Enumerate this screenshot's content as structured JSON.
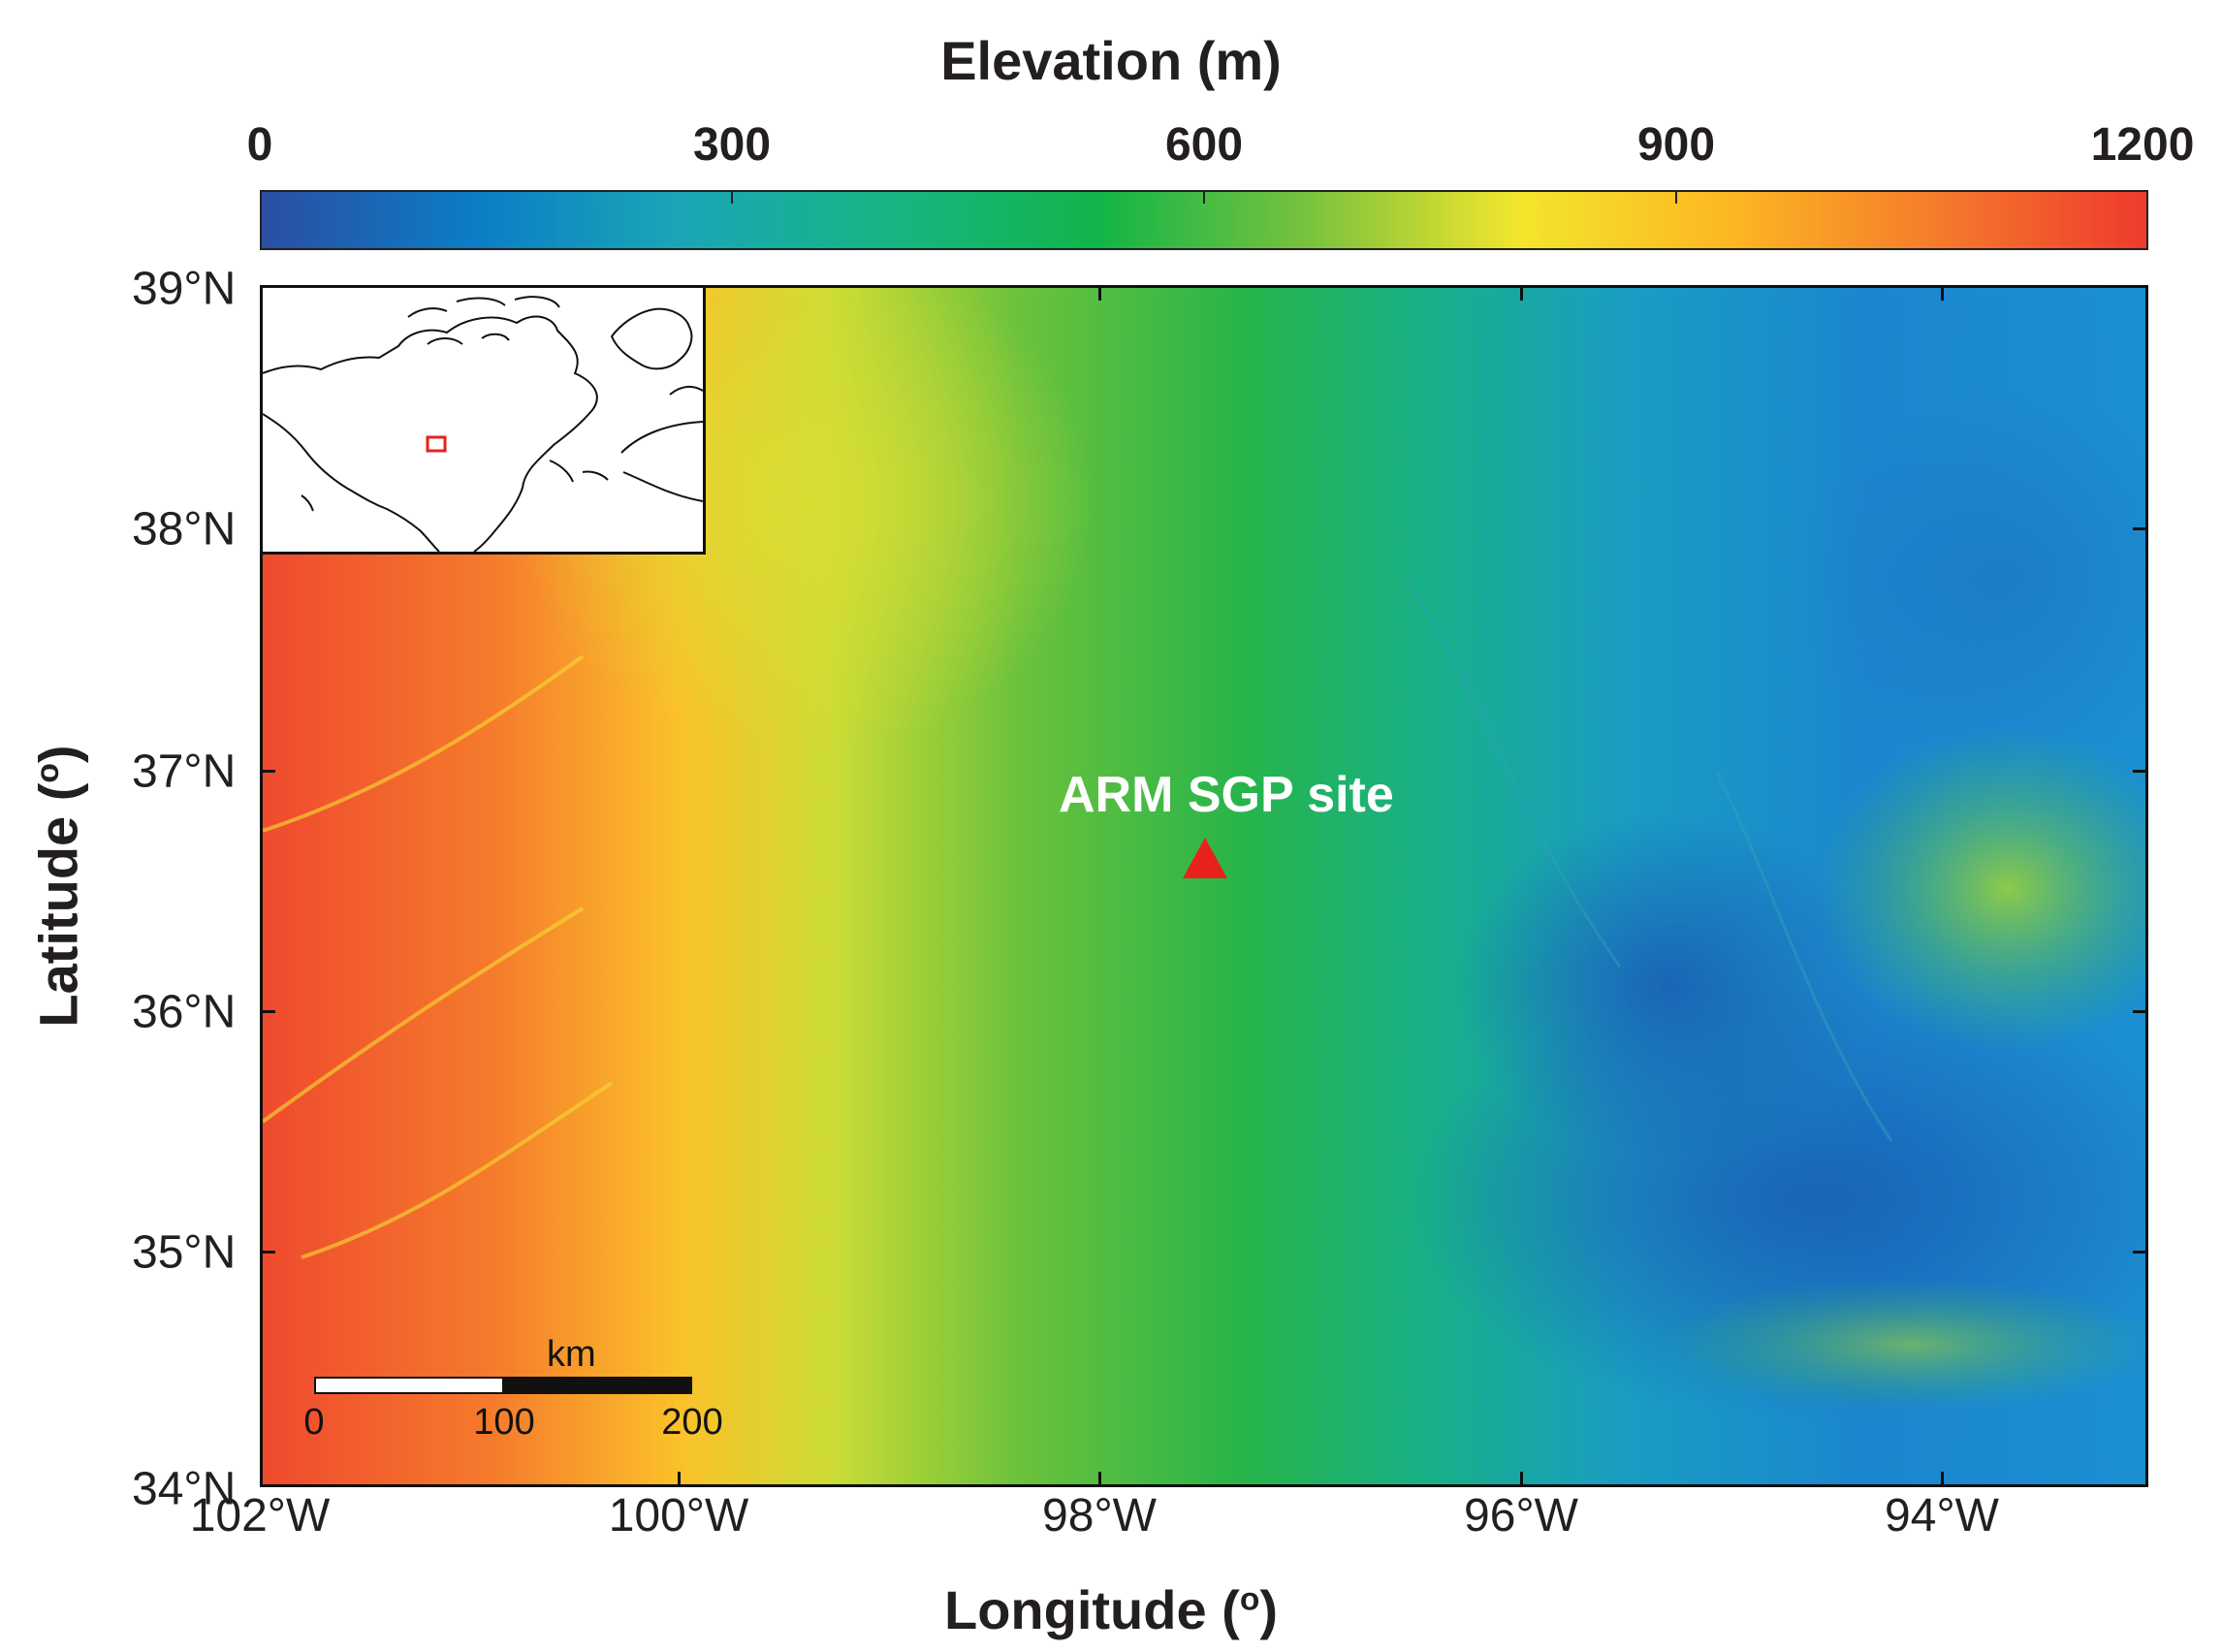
{
  "colorbar": {
    "title": "Elevation (m)",
    "ticks": [
      "0",
      "300",
      "600",
      "900",
      "1200"
    ],
    "range": [
      0,
      1200
    ],
    "colors": [
      "#2b4ea2",
      "#0c7cc6",
      "#1aa6b6",
      "#17b584",
      "#12b548",
      "#7ac23d",
      "#f3e62d",
      "#fcb822",
      "#f57b2c",
      "#ee3a2d"
    ]
  },
  "axes": {
    "xlabel": "Longitude (",
    "xlabel_sup": "o",
    "xlabel_close": ")",
    "ylabel": "Latitude (",
    "ylabel_sup": "o",
    "ylabel_close": ")",
    "lon_ticks": [
      "102°W",
      "100°W",
      "98°W",
      "96°W",
      "94°W"
    ],
    "lat_ticks": [
      "39°N",
      "38°N",
      "37°N",
      "36°N",
      "35°N",
      "34°N"
    ]
  },
  "site": {
    "label": "ARM SGP site",
    "marker_color": "#e8211d"
  },
  "scalebar": {
    "unit": "km",
    "labels": [
      "0",
      "100",
      "200"
    ]
  },
  "inset": {
    "name": "North America locator map",
    "box_color": "#e8211d"
  }
}
